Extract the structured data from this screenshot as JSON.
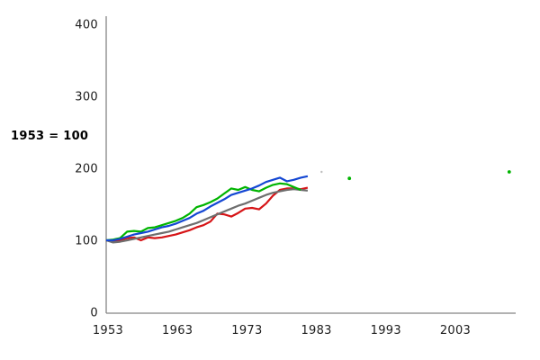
{
  "chart_data": {
    "type": "line",
    "title": "",
    "note": "1953 = 100",
    "xlabel": "",
    "ylabel": "",
    "xlim": [
      1953,
      2012
    ],
    "ylim": [
      0,
      400
    ],
    "grid": false,
    "legend": "none",
    "x_tick_labels": [
      "1953",
      "1963",
      "1973",
      "1983",
      "1993",
      "2003"
    ],
    "x_tick_years": [
      1953,
      1963,
      1973,
      1983,
      1993,
      2003
    ],
    "y_tick_labels": [
      "0",
      "100",
      "200",
      "300",
      "400"
    ],
    "y_ticks": [
      0,
      100,
      200,
      300,
      400
    ],
    "years": [
      1953,
      1954,
      1955,
      1956,
      1957,
      1958,
      1959,
      1960,
      1961,
      1962,
      1963,
      1964,
      1965,
      1966,
      1967,
      1968,
      1969,
      1970,
      1971,
      1972,
      1973,
      1974,
      1975,
      1976,
      1977,
      1978,
      1979,
      1980,
      1981,
      1982
    ],
    "series": [
      {
        "name": "series-red",
        "color": "#d61417",
        "values": [
          100,
          98,
          100,
          103,
          104,
          100,
          104,
          103,
          104,
          106,
          108,
          111,
          114,
          118,
          121,
          126,
          137,
          136,
          133,
          138,
          144,
          145,
          143,
          151,
          162,
          170,
          172,
          172,
          171,
          173
        ]
      },
      {
        "name": "series-gray",
        "color": "#6e6e6e",
        "values": [
          100,
          97,
          98,
          100,
          102,
          104,
          106,
          108,
          110,
          112,
          115,
          118,
          121,
          124,
          128,
          132,
          136,
          140,
          144,
          148,
          151,
          155,
          159,
          163,
          166,
          168,
          170,
          171,
          170,
          169
        ]
      },
      {
        "name": "series-green",
        "color": "#00b400",
        "values": [
          100,
          101,
          103,
          112,
          113,
          112,
          117,
          118,
          121,
          124,
          127,
          131,
          137,
          146,
          149,
          153,
          158,
          165,
          172,
          170,
          174,
          170,
          168,
          173,
          177,
          179,
          178,
          174,
          170,
          null
        ]
      },
      {
        "name": "series-blue",
        "color": "#1447d3",
        "values": [
          100,
          100,
          102,
          105,
          108,
          110,
          112,
          115,
          118,
          120,
          123,
          127,
          131,
          137,
          141,
          147,
          152,
          157,
          163,
          166,
          169,
          172,
          176,
          181,
          184,
          187,
          182,
          184,
          187,
          189
        ]
      }
    ],
    "stray_points": [
      {
        "series": "series-gray",
        "year": 1984,
        "value": 195,
        "faint": true
      },
      {
        "series": "series-green",
        "year": 1988,
        "value": 186,
        "faint": false
      },
      {
        "series": "series-green",
        "year": 2011,
        "value": 195,
        "faint": false
      }
    ],
    "axis_color": "#858585",
    "tick_text_color": "#1c1c1c"
  }
}
